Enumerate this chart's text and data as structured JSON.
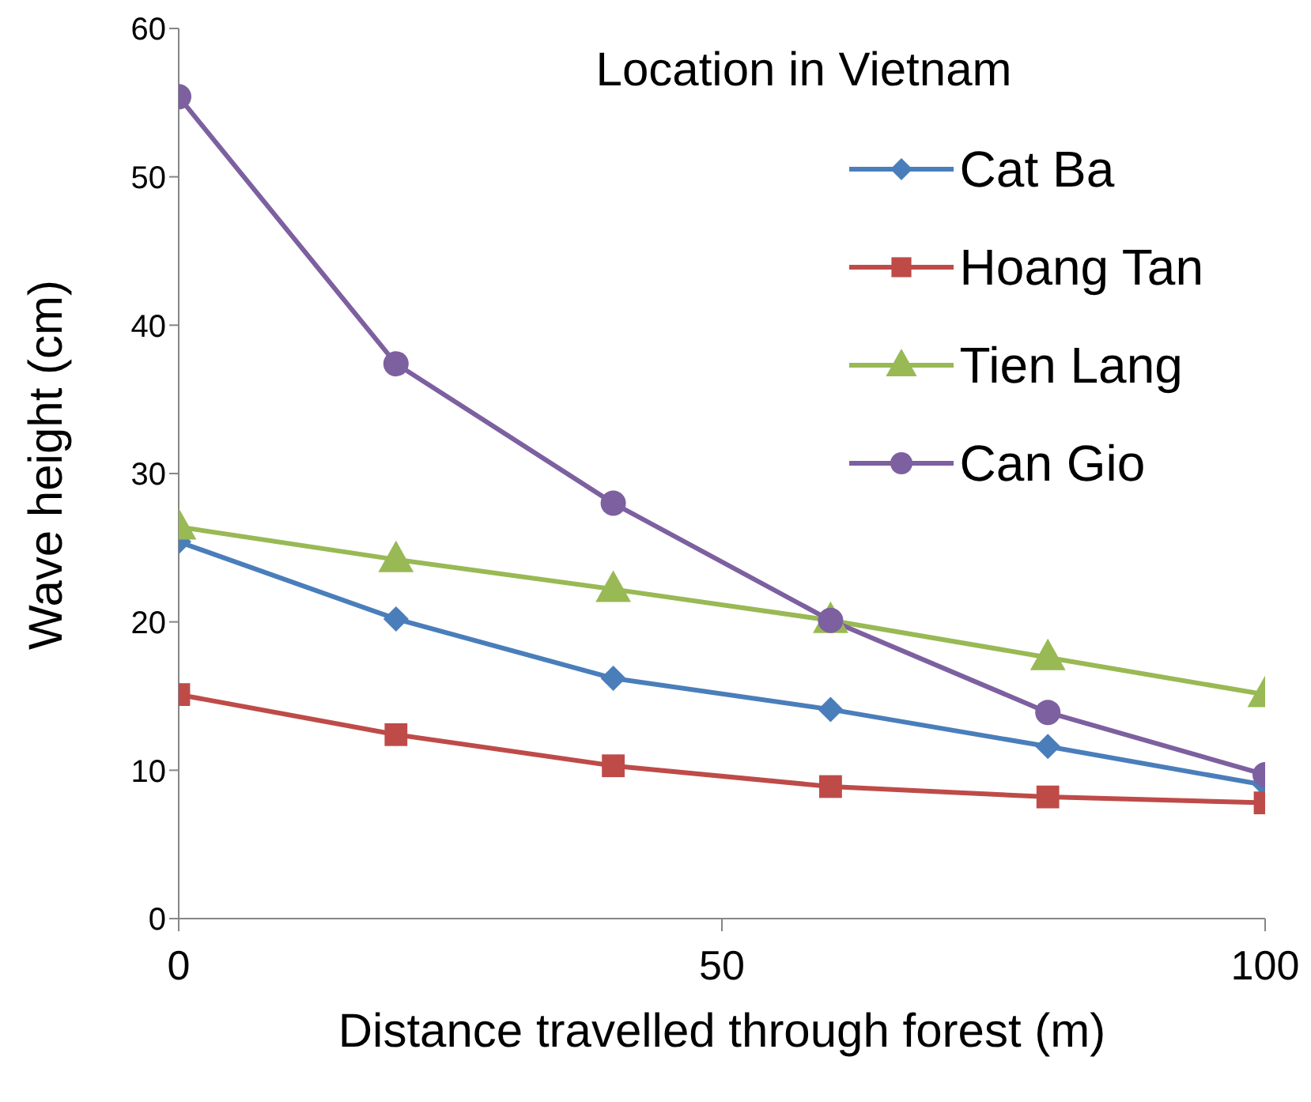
{
  "chart_data": {
    "type": "line",
    "xlabel": "Distance travelled through forest (m)",
    "ylabel": "Wave height (cm)",
    "legend_title": "Location in Vietnam",
    "x": [
      0,
      20,
      40,
      60,
      80,
      100
    ],
    "series": [
      {
        "name": "Cat Ba",
        "color": "#4a7ebb",
        "marker": "diamond",
        "values": [
          25.4,
          20.2,
          16.2,
          14.1,
          11.6,
          9.0
        ]
      },
      {
        "name": "Hoang Tan",
        "color": "#be4b48",
        "marker": "square",
        "values": [
          15.1,
          12.4,
          10.3,
          8.9,
          8.2,
          7.8
        ]
      },
      {
        "name": "Tien Lang",
        "color": "#98b954",
        "marker": "triangle",
        "values": [
          26.4,
          24.2,
          22.2,
          20.1,
          17.6,
          15.1
        ]
      },
      {
        "name": "Can Gio",
        "color": "#7d60a0",
        "marker": "circle",
        "values": [
          55.4,
          37.4,
          28.0,
          20.1,
          13.9,
          9.7
        ]
      }
    ],
    "xlim": [
      0,
      100
    ],
    "xticks": [
      0,
      50,
      100
    ],
    "ylim": [
      0,
      60
    ],
    "yticks": [
      0,
      10,
      20,
      30,
      40,
      50,
      60
    ],
    "grid": false,
    "legend": "top right",
    "line_style": "solid"
  }
}
